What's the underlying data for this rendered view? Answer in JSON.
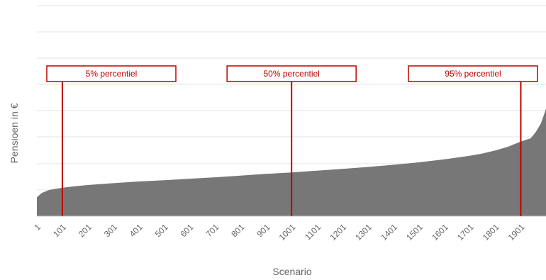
{
  "chart_data": {
    "type": "area",
    "title": "",
    "xlabel": "Scenario",
    "ylabel": "Pensioen in €",
    "x_range": [
      1,
      2000
    ],
    "x_ticks": [
      "1",
      "101",
      "201",
      "301",
      "401",
      "501",
      "601",
      "701",
      "801",
      "901",
      "1001",
      "1101",
      "1201",
      "1301",
      "1401",
      "1501",
      "1601",
      "1701",
      "1801",
      "1901"
    ],
    "y_tick_labels_shown": false,
    "grid": "horizontal",
    "series": [
      {
        "color": "#777777",
        "x": [
          1,
          20,
          50,
          101,
          150,
          201,
          301,
          401,
          501,
          601,
          701,
          801,
          901,
          1001,
          1101,
          1201,
          1301,
          1401,
          1501,
          1601,
          1701,
          1751,
          1801,
          1851,
          1901,
          1940,
          1960,
          1980,
          2000
        ],
        "y": [
          0.09,
          0.11,
          0.125,
          0.135,
          0.142,
          0.148,
          0.157,
          0.165,
          0.171,
          0.178,
          0.185,
          0.193,
          0.201,
          0.208,
          0.216,
          0.225,
          0.234,
          0.244,
          0.256,
          0.27,
          0.287,
          0.298,
          0.312,
          0.33,
          0.355,
          0.37,
          0.4,
          0.44,
          0.51
        ]
      }
    ],
    "percentile_markers": [
      {
        "label": "5% percentiel",
        "x": 101,
        "color": "#c00000"
      },
      {
        "label": "50% percentiel",
        "x": 1001,
        "color": "#c00000"
      },
      {
        "label": "95% percentiel",
        "x": 1901,
        "color": "#c00000"
      }
    ]
  }
}
